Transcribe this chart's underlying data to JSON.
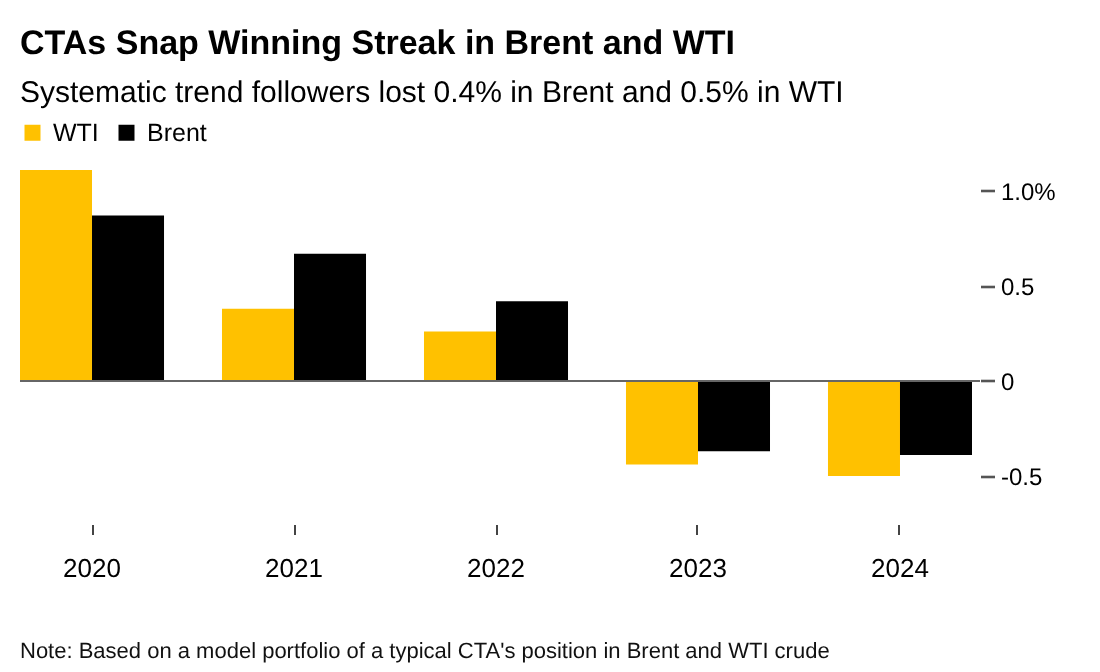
{
  "chart_data": {
    "type": "bar",
    "title": "CTAs Snap Winning Streak in Brent and WTI",
    "subtitle": "Systematic trend followers lost 0.4% in Brent and 0.5% in WTI",
    "annotations": [
      "Note: Based on a model portfolio of a typical CTA's position in Brent and WTI crude"
    ],
    "categories": [
      "2020",
      "2021",
      "2022",
      "2023",
      "2024"
    ],
    "series": [
      {
        "name": "WTI",
        "color": "#ffc100",
        "values": [
          1.11,
          0.38,
          0.26,
          -0.44,
          -0.5
        ]
      },
      {
        "name": "Brent",
        "color": "#000000",
        "values": [
          0.87,
          0.67,
          0.42,
          -0.37,
          -0.39
        ]
      }
    ],
    "ylim": [
      -0.5,
      1.11
    ],
    "yticks": [
      {
        "value": 1,
        "label": "1.0%"
      },
      0.5,
      0,
      -0.5
    ],
    "ref_lines": [
      {
        "axis": "y",
        "value": 0,
        "color": "#666666"
      }
    ],
    "legend": "top left"
  }
}
